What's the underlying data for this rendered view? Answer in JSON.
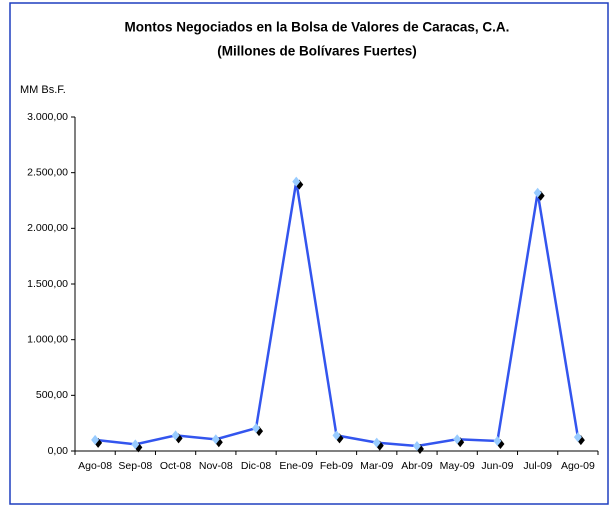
{
  "chart_data": {
    "type": "line",
    "title": "Montos Negociados en la Bolsa de Valores de Caracas, C.A.",
    "subtitle": "(Millones de Bolívares Fuertes)",
    "y_axis_label": "MM Bs.F.",
    "categories": [
      "Ago-08",
      "Sep-08",
      "Oct-08",
      "Nov-08",
      "Dic-08",
      "Ene-09",
      "Feb-09",
      "Mar-09",
      "Abr-09",
      "May-09",
      "Jun-09",
      "Jul-09",
      "Ago-09"
    ],
    "series": [
      {
        "name": "Montos",
        "color": "#3355ee",
        "values": [
          100,
          60,
          140,
          105,
          205,
          2420,
          140,
          75,
          45,
          105,
          90,
          2320,
          125
        ]
      }
    ],
    "ylim": [
      0,
      3000
    ],
    "yticks": [
      {
        "value": 0,
        "label": "0,00"
      },
      {
        "value": 500,
        "label": "500,00"
      },
      {
        "value": 1000,
        "label": "1.000,00"
      },
      {
        "value": 1500,
        "label": "1.500,00"
      },
      {
        "value": 2000,
        "label": "2.000,00"
      },
      {
        "value": 2500,
        "label": "2.500,00"
      },
      {
        "value": 3000,
        "label": "3.000,00"
      }
    ],
    "marker_color": "#99ccff"
  }
}
